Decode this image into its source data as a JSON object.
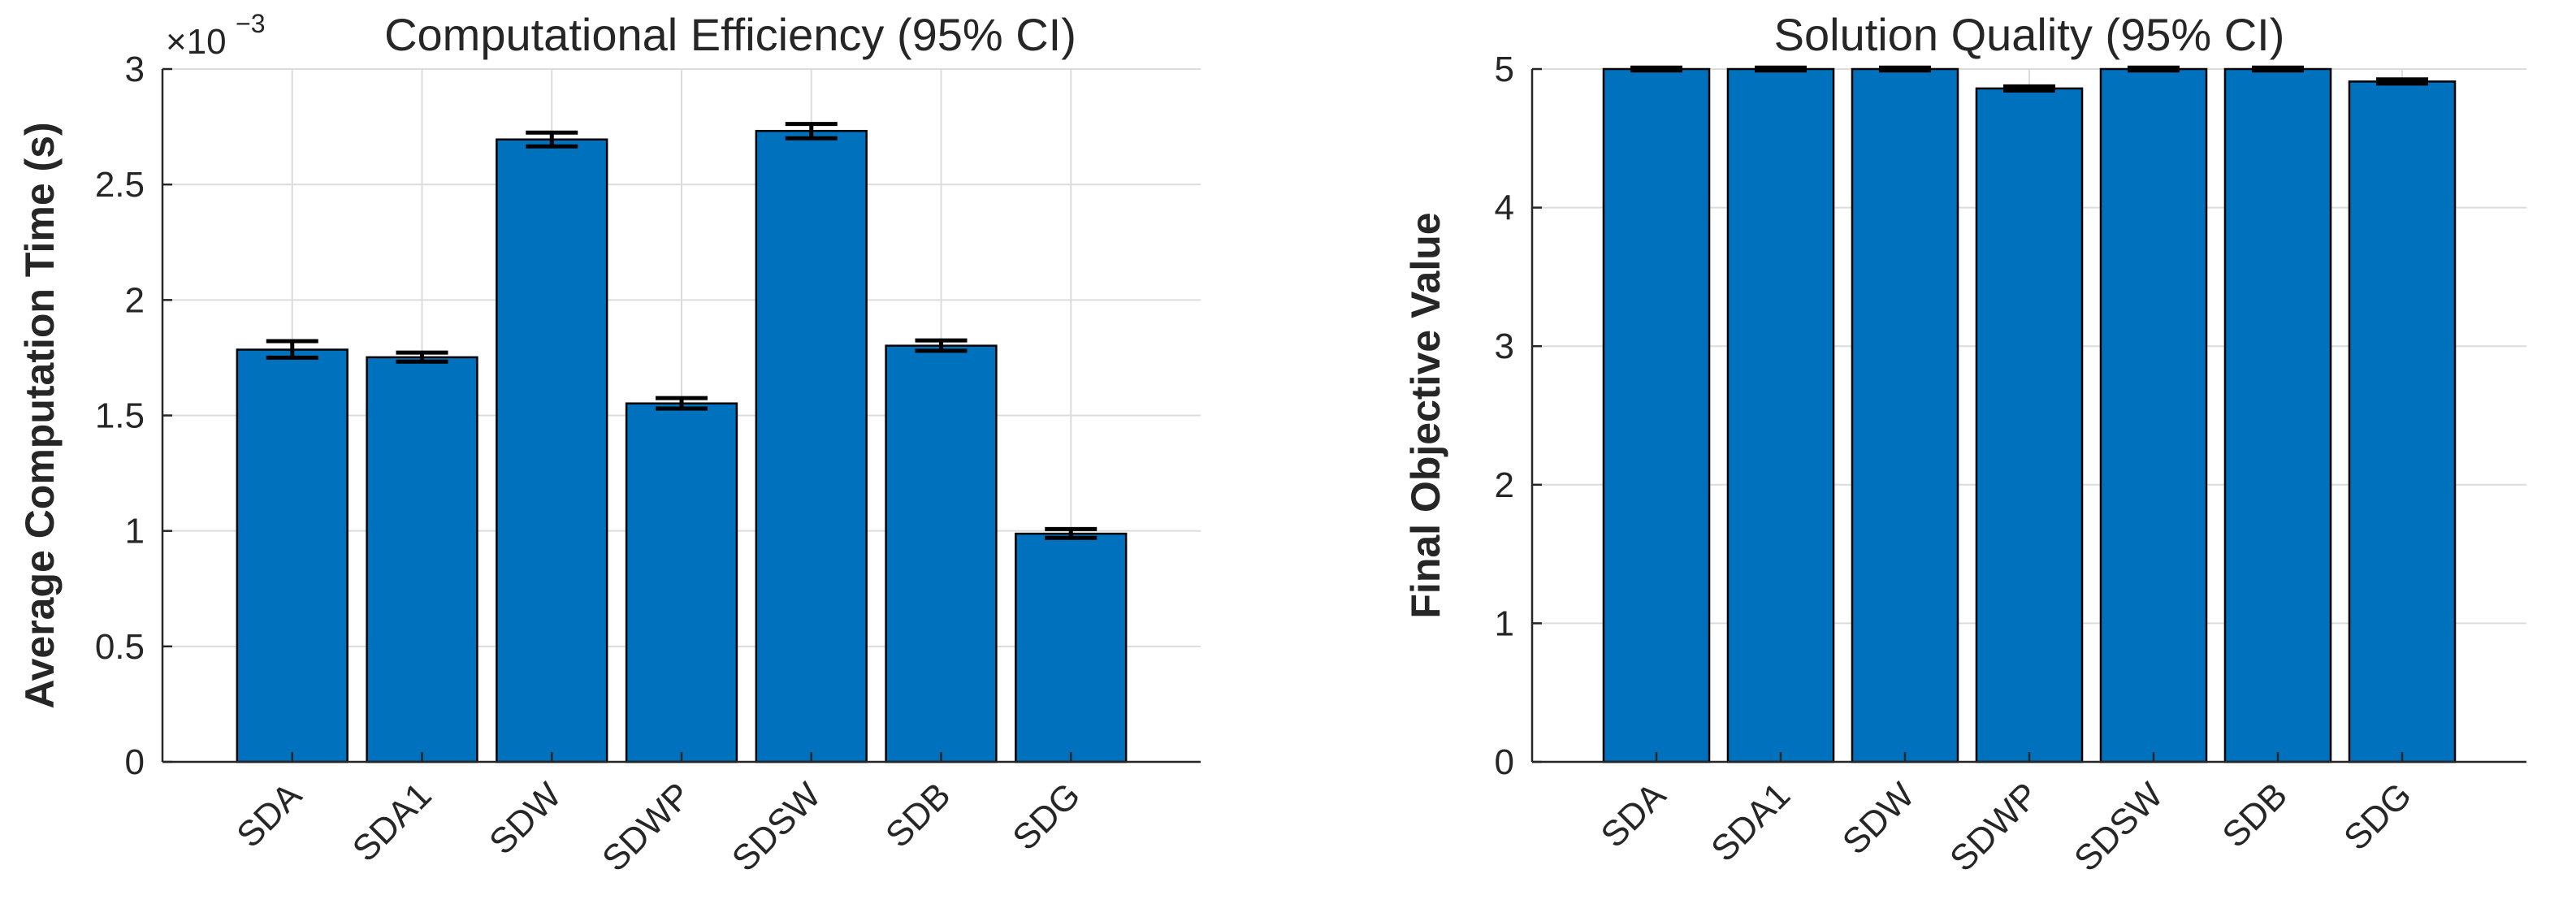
{
  "chart_data": [
    {
      "type": "bar",
      "title": "Computational Efficiency (95% CI)",
      "xlabel": "",
      "ylabel": "Average Computation Time (s)",
      "exponent_label": {
        "base": "×10",
        "exp": "−3"
      },
      "categories": [
        "SDA",
        "SDA1",
        "SDW",
        "SDWP",
        "SDSW",
        "SDB",
        "SDG"
      ],
      "values": [
        1.785,
        1.752,
        2.695,
        1.552,
        2.732,
        1.802,
        0.988
      ],
      "ci_low": [
        1.75,
        1.733,
        2.665,
        1.53,
        2.7,
        1.78,
        0.97
      ],
      "ci_high": [
        1.822,
        1.772,
        2.725,
        1.575,
        2.762,
        1.825,
        1.008
      ],
      "ylim": [
        0,
        3
      ],
      "yticks": [
        0,
        0.5,
        1,
        1.5,
        2,
        2.5,
        3
      ],
      "ytick_labels": [
        "0",
        "0.5",
        "1",
        "1.5",
        "2",
        "2.5",
        "3"
      ],
      "grid": true,
      "colors": {
        "bar": "#0072BD",
        "edge": "#000000",
        "error": "#000000",
        "grid": "#dcdcdc",
        "axis": "#262626"
      }
    },
    {
      "type": "bar",
      "title": "Solution Quality (95% CI)",
      "xlabel": "",
      "ylabel": "Final Objective Value",
      "categories": [
        "SDA",
        "SDA1",
        "SDW",
        "SDWP",
        "SDSW",
        "SDB",
        "SDG"
      ],
      "values": [
        5.0,
        5.0,
        5.0,
        4.86,
        5.0,
        5.0,
        4.91
      ],
      "ci_low": [
        4.99,
        4.99,
        4.99,
        4.845,
        4.99,
        4.99,
        4.895
      ],
      "ci_high": [
        5.01,
        5.01,
        5.01,
        4.875,
        5.01,
        5.01,
        4.925
      ],
      "ylim": [
        0,
        5
      ],
      "yticks": [
        0,
        1,
        2,
        3,
        4,
        5
      ],
      "ytick_labels": [
        "0",
        "1",
        "2",
        "3",
        "4",
        "5"
      ],
      "grid": true,
      "colors": {
        "bar": "#0072BD",
        "edge": "#000000",
        "error": "#000000",
        "grid": "#dcdcdc",
        "axis": "#262626"
      }
    }
  ]
}
